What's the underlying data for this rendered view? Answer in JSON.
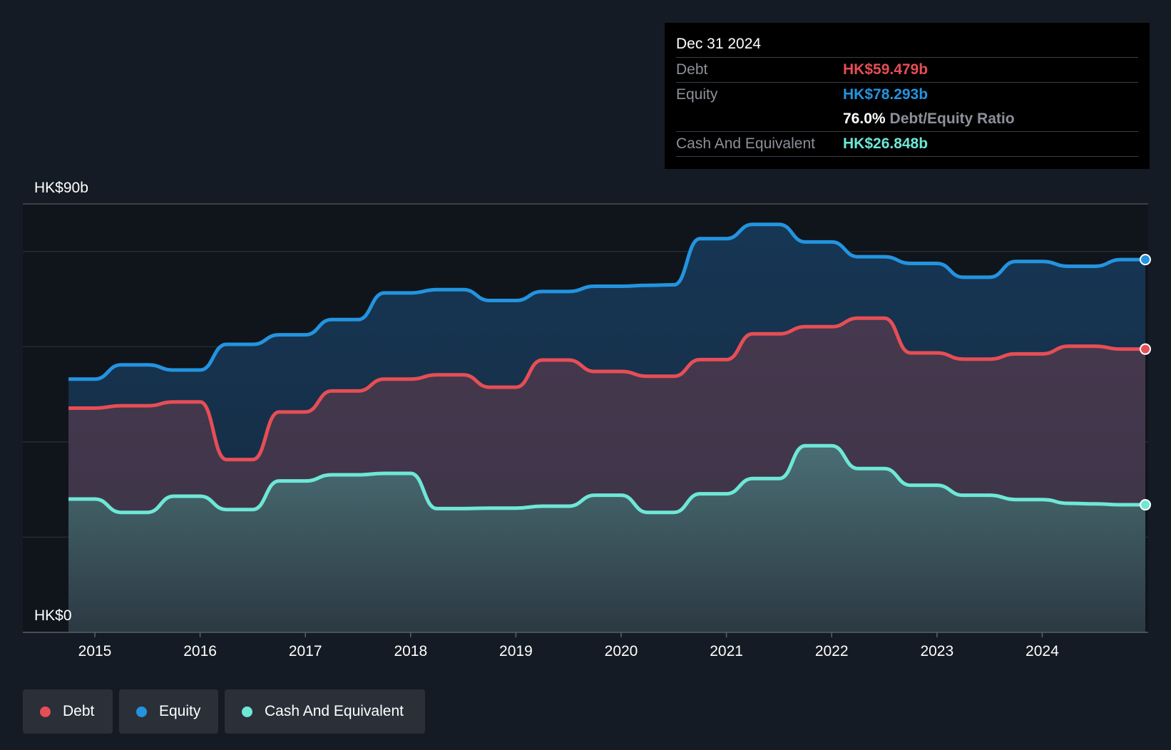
{
  "chart_data": {
    "type": "line",
    "y_top_label": "HK$90b",
    "y_bottom_label": "HK$0",
    "ylim": [
      0,
      90
    ],
    "xlim": [
      2014.75,
      2025.0
    ],
    "x_ticks": [
      "2015",
      "2016",
      "2017",
      "2018",
      "2019",
      "2020",
      "2021",
      "2022",
      "2023",
      "2024"
    ],
    "grid": true,
    "legend_position": "bottom-left",
    "series": [
      {
        "name": "Equity",
        "color": "#2394df",
        "points": [
          [
            2014.75,
            53.2
          ],
          [
            2015.0,
            53.2
          ],
          [
            2015.25,
            56.2
          ],
          [
            2015.5,
            56.2
          ],
          [
            2015.75,
            55.1
          ],
          [
            2016.0,
            55.1
          ],
          [
            2016.25,
            60.5
          ],
          [
            2016.5,
            60.5
          ],
          [
            2016.75,
            62.5
          ],
          [
            2017.0,
            62.5
          ],
          [
            2017.25,
            65.7
          ],
          [
            2017.5,
            65.7
          ],
          [
            2017.75,
            71.3
          ],
          [
            2018.0,
            71.3
          ],
          [
            2018.25,
            72.0
          ],
          [
            2018.5,
            72.0
          ],
          [
            2018.75,
            69.7
          ],
          [
            2019.0,
            69.7
          ],
          [
            2019.25,
            71.6
          ],
          [
            2019.5,
            71.6
          ],
          [
            2019.75,
            72.7
          ],
          [
            2020.0,
            72.7
          ],
          [
            2020.25,
            72.9
          ],
          [
            2020.5,
            73.0
          ],
          [
            2020.75,
            82.7
          ],
          [
            2021.0,
            82.7
          ],
          [
            2021.25,
            85.7
          ],
          [
            2021.5,
            85.7
          ],
          [
            2021.75,
            82.0
          ],
          [
            2022.0,
            82.0
          ],
          [
            2022.25,
            78.9
          ],
          [
            2022.5,
            78.9
          ],
          [
            2022.75,
            77.5
          ],
          [
            2023.0,
            77.5
          ],
          [
            2023.25,
            74.6
          ],
          [
            2023.5,
            74.6
          ],
          [
            2023.75,
            77.9
          ],
          [
            2024.0,
            77.9
          ],
          [
            2024.25,
            76.9
          ],
          [
            2024.5,
            76.9
          ],
          [
            2024.75,
            78.3
          ],
          [
            2025.0,
            78.3
          ]
        ]
      },
      {
        "name": "Debt",
        "color": "#e64e55",
        "points": [
          [
            2014.75,
            47.1
          ],
          [
            2015.0,
            47.1
          ],
          [
            2015.25,
            47.6
          ],
          [
            2015.5,
            47.6
          ],
          [
            2015.75,
            48.4
          ],
          [
            2016.0,
            48.4
          ],
          [
            2016.25,
            36.3
          ],
          [
            2016.5,
            36.3
          ],
          [
            2016.75,
            46.3
          ],
          [
            2017.0,
            46.3
          ],
          [
            2017.25,
            50.7
          ],
          [
            2017.5,
            50.7
          ],
          [
            2017.75,
            53.2
          ],
          [
            2018.0,
            53.2
          ],
          [
            2018.25,
            54.1
          ],
          [
            2018.5,
            54.1
          ],
          [
            2018.75,
            51.5
          ],
          [
            2019.0,
            51.5
          ],
          [
            2019.25,
            57.2
          ],
          [
            2019.5,
            57.2
          ],
          [
            2019.75,
            54.8
          ],
          [
            2020.0,
            54.8
          ],
          [
            2020.25,
            53.8
          ],
          [
            2020.5,
            53.8
          ],
          [
            2020.75,
            57.3
          ],
          [
            2021.0,
            57.3
          ],
          [
            2021.25,
            62.7
          ],
          [
            2021.5,
            62.7
          ],
          [
            2021.75,
            64.2
          ],
          [
            2022.0,
            64.2
          ],
          [
            2022.25,
            66.0
          ],
          [
            2022.5,
            66.0
          ],
          [
            2022.75,
            58.7
          ],
          [
            2023.0,
            58.7
          ],
          [
            2023.25,
            57.4
          ],
          [
            2023.5,
            57.4
          ],
          [
            2023.75,
            58.5
          ],
          [
            2024.0,
            58.5
          ],
          [
            2024.25,
            60.1
          ],
          [
            2024.5,
            60.1
          ],
          [
            2024.75,
            59.5
          ],
          [
            2025.0,
            59.5
          ]
        ]
      },
      {
        "name": "Cash And Equivalent",
        "color": "#6ee7d6",
        "points": [
          [
            2014.75,
            28.0
          ],
          [
            2015.0,
            28.0
          ],
          [
            2015.25,
            25.2
          ],
          [
            2015.5,
            25.2
          ],
          [
            2015.75,
            28.6
          ],
          [
            2016.0,
            28.6
          ],
          [
            2016.25,
            25.8
          ],
          [
            2016.5,
            25.8
          ],
          [
            2016.75,
            31.8
          ],
          [
            2017.0,
            31.8
          ],
          [
            2017.25,
            33.1
          ],
          [
            2017.5,
            33.1
          ],
          [
            2017.75,
            33.4
          ],
          [
            2018.0,
            33.4
          ],
          [
            2018.25,
            26.0
          ],
          [
            2018.5,
            26.0
          ],
          [
            2018.75,
            26.1
          ],
          [
            2019.0,
            26.1
          ],
          [
            2019.25,
            26.5
          ],
          [
            2019.5,
            26.5
          ],
          [
            2019.75,
            28.8
          ],
          [
            2020.0,
            28.8
          ],
          [
            2020.25,
            25.2
          ],
          [
            2020.5,
            25.2
          ],
          [
            2020.75,
            29.1
          ],
          [
            2021.0,
            29.1
          ],
          [
            2021.25,
            32.3
          ],
          [
            2021.5,
            32.3
          ],
          [
            2021.75,
            39.2
          ],
          [
            2022.0,
            39.2
          ],
          [
            2022.25,
            34.4
          ],
          [
            2022.5,
            34.4
          ],
          [
            2022.75,
            30.9
          ],
          [
            2023.0,
            30.9
          ],
          [
            2023.25,
            28.8
          ],
          [
            2023.5,
            28.8
          ],
          [
            2023.75,
            27.9
          ],
          [
            2024.0,
            27.9
          ],
          [
            2024.25,
            27.1
          ],
          [
            2024.5,
            27.0
          ],
          [
            2024.75,
            26.8
          ],
          [
            2025.0,
            26.8
          ]
        ]
      }
    ]
  },
  "tooltip": {
    "date": "Dec 31 2024",
    "debt_label": "Debt",
    "debt_value": "HK$59.479b",
    "equity_label": "Equity",
    "equity_value": "HK$78.293b",
    "ratio_value": "76.0%",
    "ratio_label": "Debt/Equity Ratio",
    "cash_label": "Cash And Equivalent",
    "cash_value": "HK$26.848b"
  },
  "legend": [
    {
      "label": "Debt",
      "color": "#e64e55"
    },
    {
      "label": "Equity",
      "color": "#2394df"
    },
    {
      "label": "Cash And Equivalent",
      "color": "#6ee7d6"
    }
  ]
}
